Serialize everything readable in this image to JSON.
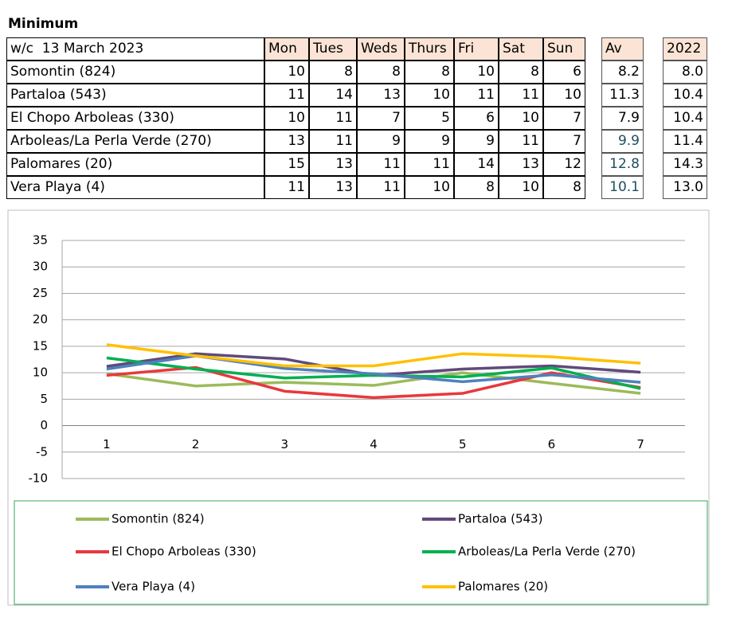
{
  "title": "Minimum",
  "table": {
    "header": [
      "w/c  13 March 2023",
      "Mon",
      "Tues",
      "Weds",
      "Thurs",
      "Fri",
      "Sat",
      "Sun",
      "Av",
      "2022"
    ],
    "rows": [
      [
        "Somontin (824)",
        "10",
        "8",
        "8",
        "8",
        "10",
        "8",
        "6",
        "8.2",
        "8.0"
      ],
      [
        "Partaloa (543)",
        "11",
        "14",
        "13",
        "10",
        "11",
        "11",
        "10",
        "11.3",
        "10.4"
      ],
      [
        "El Chopo Arboleas (330)",
        "10",
        "11",
        "7",
        "5",
        "6",
        "10",
        "7",
        "7.9",
        "10.4"
      ],
      [
        "Arboleas/La Perla Verde (270)",
        "13",
        "11",
        "9",
        "9",
        "9",
        "11",
        "7",
        "9.9",
        "11.4"
      ],
      [
        "Palomares (20)",
        "15",
        "13",
        "11",
        "11",
        "14",
        "13",
        "12",
        "12.8",
        "14.3"
      ],
      [
        "Vera Playa (4)",
        "11",
        "13",
        "11",
        "10",
        "8",
        "10",
        "8",
        "10.1",
        "13.0"
      ]
    ]
  },
  "chart_data": {
    "type": "line",
    "categories": [
      "1",
      "2",
      "3",
      "4",
      "5",
      "6",
      "7"
    ],
    "ylim": [
      -10,
      35
    ],
    "yticks": [
      -10,
      -5,
      0,
      5,
      10,
      15,
      20,
      25,
      30,
      35
    ],
    "grid": true,
    "series": [
      {
        "name": "Somontin (824)",
        "color": "#9bbb59",
        "values": [
          9.8,
          7.5,
          8.2,
          7.6,
          10,
          8,
          6.1
        ]
      },
      {
        "name": "Partaloa (543)",
        "color": "#604a7b",
        "values": [
          11.2,
          13.6,
          12.6,
          9.5,
          10.7,
          11.3,
          10.1
        ]
      },
      {
        "name": "El Chopo Arboleas (330)",
        "color": "#e8383d",
        "values": [
          9.5,
          11,
          6.5,
          5.3,
          6.1,
          10,
          7.2
        ]
      },
      {
        "name": "Arboleas/La Perla Verde (270)",
        "color": "#00b050",
        "values": [
          12.8,
          10.7,
          9,
          9.5,
          9.2,
          10.9,
          7
        ]
      },
      {
        "name": "Vera Playa (4)",
        "color": "#4f81bd",
        "values": [
          10.7,
          13.2,
          10.8,
          9.8,
          8.3,
          9.6,
          8.2
        ]
      },
      {
        "name": "Palomares (20)",
        "color": "#ffc000",
        "values": [
          15.3,
          13.2,
          11.3,
          11.3,
          13.6,
          13,
          11.8
        ]
      }
    ]
  }
}
